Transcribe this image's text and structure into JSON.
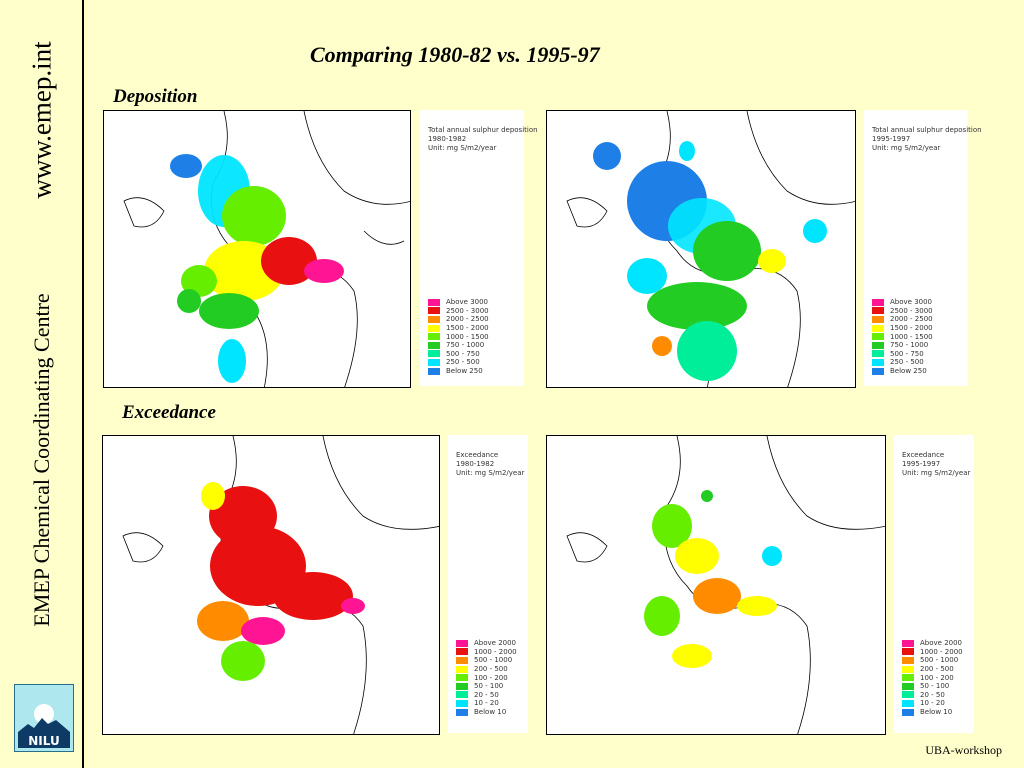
{
  "sidebar": {
    "url": "www.emep.int",
    "centre": "EMEP Chemical Coordinating Centre",
    "logo_text": "NILU"
  },
  "title": "Comparing 1980-82 vs. 1995-97",
  "sections": {
    "deposition": "Deposition",
    "exceedance": "Exceedance"
  },
  "legend_colors": [
    "#ff1493",
    "#e81010",
    "#ff8c00",
    "#ffff00",
    "#66ee00",
    "#22cc22",
    "#00ee99",
    "#00e5ff",
    "#1e7fe6"
  ],
  "deposition_legend": {
    "entries": [
      "Above    3000",
      "2500  -  3000",
      "2000  -  2500",
      "1500  -  2000",
      "1000  -  1500",
      "750  -  1000",
      "500  -    750",
      "250  -    500",
      "Below      250"
    ]
  },
  "exceedance_legend": {
    "entries": [
      "Above    2000",
      "1000  -  2000",
      "500  -  1000",
      "200  -    500",
      "100  -    200",
      "50  -    100",
      "20  -      50",
      "10  -      20",
      "Below        10"
    ]
  },
  "maps": [
    {
      "id": "dep-1980",
      "lines": [
        "Total annual sulphur deposition",
        "1980-1982",
        "Unit: mg S/m2/year"
      ]
    },
    {
      "id": "dep-1995",
      "lines": [
        "Total annual sulphur deposition",
        "1995-1997",
        "Unit: mg S/m2/year"
      ]
    },
    {
      "id": "exc-1980",
      "lines": [
        "Exceedance",
        "1980-1982",
        "Unit: mg S/m2/year"
      ]
    },
    {
      "id": "exc-1995",
      "lines": [
        "Exceedance",
        "1995-1997",
        "Unit: mg S/m2/year"
      ]
    }
  ],
  "footer": "UBA-workshop"
}
